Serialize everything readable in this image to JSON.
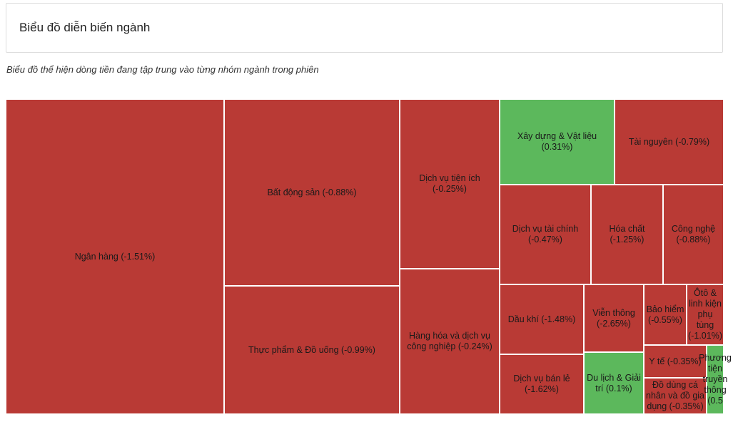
{
  "header": {
    "title": "Biểu đồ diễn biến ngành"
  },
  "description": "Biểu đồ thể hiện dòng tiền đang tập trung vào từng nhóm ngành trong phiên",
  "colors": {
    "negative": "#b93a35",
    "positive": "#5cb85c"
  },
  "chart_data": {
    "type": "treemap",
    "title": "Biểu đồ diễn biến ngành",
    "subtitle": "Biểu đồ thể hiện dòng tiền đang tập trung vào từng nhóm ngành trong phiên",
    "series": [
      {
        "label": "Ngân hàng (-1.51%)",
        "name": "Ngân hàng",
        "change": -1.51
      },
      {
        "label": "Bất động sản (-0.88%)",
        "name": "Bất động sản",
        "change": -0.88
      },
      {
        "label": "Thực phẩm & Đồ uống (-0.99%)",
        "name": "Thực phẩm & Đồ uống",
        "change": -0.99
      },
      {
        "label": "Dịch vụ tiện ích (-0.25%)",
        "name": "Dịch vụ tiện ích",
        "change": -0.25
      },
      {
        "label": "Hàng hóa và dịch vụ công nghiệp (-0.24%)",
        "name": "Hàng hóa và dịch vụ công nghiệp",
        "change": -0.24
      },
      {
        "label": "Xây dựng & Vật liệu (0.31%)",
        "name": "Xây dựng & Vật liệu",
        "change": 0.31
      },
      {
        "label": "Tài nguyên (-0.79%)",
        "name": "Tài nguyên",
        "change": -0.79
      },
      {
        "label": "Dịch vụ tài chính (-0.47%)",
        "name": "Dịch vụ tài chính",
        "change": -0.47
      },
      {
        "label": "Hóa chất (-1.25%)",
        "name": "Hóa chất",
        "change": -1.25
      },
      {
        "label": "Công nghệ (-0.88%)",
        "name": "Công nghệ",
        "change": -0.88
      },
      {
        "label": "Dầu khí (-1.48%)",
        "name": "Dầu khí",
        "change": -1.48
      },
      {
        "label": "Viễn thông (-2.65%)",
        "name": "Viễn thông",
        "change": -2.65
      },
      {
        "label": "Bảo hiểm (-0.55%)",
        "name": "Bảo hiểm",
        "change": -0.55
      },
      {
        "label": "Ôtô & linh kiện phụ tùng (-1.01%)",
        "name": "Ôtô & linh kiện phụ tùng",
        "change": -1.01
      },
      {
        "label": "Dịch vụ bán lẻ (-1.62%)",
        "name": "Dịch vụ bán lẻ",
        "change": -1.62
      },
      {
        "label": "Du lịch & Giải trí (0.1%)",
        "name": "Du lịch & Giải trí",
        "change": 0.1
      },
      {
        "label": "Y tế (-0.35%)",
        "name": "Y tế",
        "change": -0.35
      },
      {
        "label": "Đồ dùng cá nhân và đồ gia dụng (-0.35%)",
        "name": "Đồ dùng cá nhân và đồ gia dụng",
        "change": -0.35
      },
      {
        "label": "Phương tiện truyền thông (0.5",
        "name": "Phương tiện truyền thông",
        "change": 0.5
      }
    ]
  }
}
